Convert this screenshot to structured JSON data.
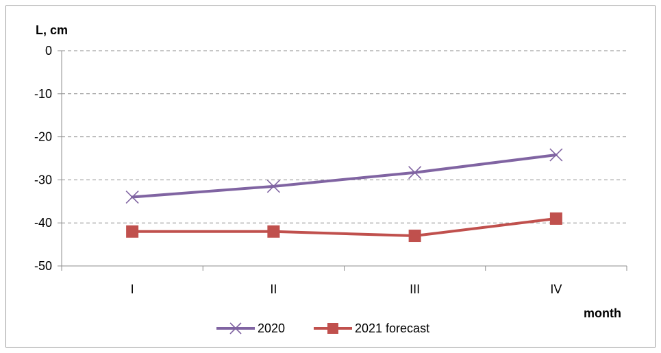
{
  "chart_data": {
    "type": "line",
    "title": "",
    "xlabel": "month",
    "ylabel": "L, cm",
    "categories": [
      "I",
      "II",
      "III",
      "IV"
    ],
    "ylim": [
      -50,
      0
    ],
    "yticks": [
      0,
      -10,
      -20,
      -30,
      -40,
      -50
    ],
    "grid": "horizontal dashed",
    "legend_position": "bottom",
    "series": [
      {
        "name": "2020",
        "values": [
          -34,
          -31.5,
          -28.3,
          -24.2
        ],
        "color": "#8064a2",
        "marker": "x"
      },
      {
        "name": "2021 forecast",
        "values": [
          -42,
          -42,
          -43,
          -39
        ],
        "color": "#c0504d",
        "marker": "square"
      }
    ]
  }
}
